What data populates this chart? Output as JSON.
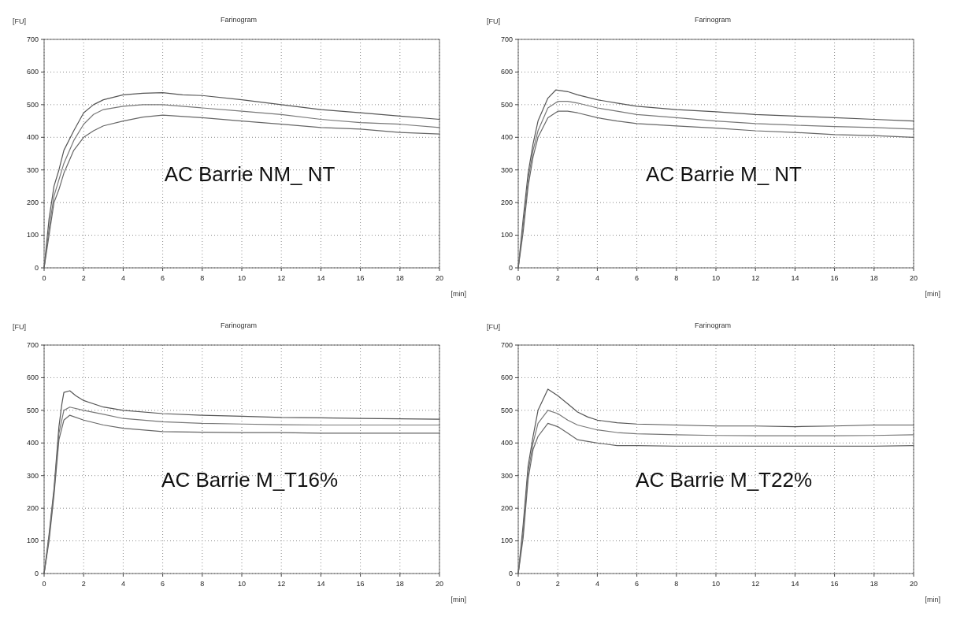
{
  "chart_data": [
    {
      "type": "line",
      "title": "Farinogram",
      "xlabel": "[min]",
      "ylabel": "[FU]",
      "annotations": [
        "AC Barrie NM_ NT"
      ],
      "xlim": [
        0,
        20
      ],
      "ylim": [
        0,
        700
      ],
      "xticks": [
        0,
        2,
        4,
        6,
        8,
        10,
        12,
        14,
        16,
        18,
        20
      ],
      "yticks": [
        0,
        100,
        200,
        300,
        400,
        500,
        600,
        700
      ],
      "grid": true,
      "line_style": "solid",
      "marker": "none",
      "series": [
        {
          "color": "#555555",
          "x": [
            0,
            0.25,
            0.5,
            0.75,
            1,
            1.5,
            2,
            2.5,
            3,
            4,
            5,
            6,
            7,
            8,
            10,
            12,
            14,
            16,
            18,
            20
          ],
          "values": [
            0,
            150,
            250,
            300,
            360,
            420,
            475,
            500,
            515,
            530,
            535,
            537,
            530,
            528,
            515,
            500,
            485,
            475,
            465,
            455
          ]
        },
        {
          "color": "#777777",
          "x": [
            0,
            0.25,
            0.5,
            0.75,
            1,
            1.5,
            2,
            2.5,
            3,
            4,
            5,
            6,
            8,
            10,
            12,
            14,
            16,
            18,
            20
          ],
          "values": [
            0,
            120,
            220,
            270,
            320,
            390,
            440,
            470,
            485,
            495,
            500,
            500,
            490,
            480,
            470,
            455,
            445,
            440,
            430
          ]
        },
        {
          "color": "#666666",
          "x": [
            0,
            0.25,
            0.5,
            0.75,
            1,
            1.5,
            2,
            2.5,
            3,
            4,
            5,
            6,
            8,
            10,
            12,
            14,
            16,
            18,
            20
          ],
          "values": [
            0,
            100,
            200,
            240,
            290,
            360,
            400,
            420,
            435,
            450,
            462,
            468,
            460,
            450,
            440,
            430,
            425,
            415,
            410
          ]
        }
      ]
    },
    {
      "type": "line",
      "title": "Farinogram",
      "xlabel": "[min]",
      "ylabel": "[FU]",
      "annotations": [
        "AC Barrie M_ NT"
      ],
      "xlim": [
        0,
        20
      ],
      "ylim": [
        0,
        700
      ],
      "xticks": [
        0,
        2,
        4,
        6,
        8,
        10,
        12,
        14,
        16,
        18,
        20
      ],
      "yticks": [
        0,
        100,
        200,
        300,
        400,
        500,
        600,
        700
      ],
      "grid": true,
      "line_style": "solid",
      "marker": "none",
      "series": [
        {
          "color": "#555555",
          "x": [
            0,
            0.25,
            0.5,
            0.75,
            1,
            1.5,
            1.9,
            2.5,
            3,
            4,
            5,
            6,
            8,
            10,
            12,
            14,
            16,
            18,
            20
          ],
          "values": [
            0,
            150,
            290,
            380,
            450,
            520,
            545,
            540,
            530,
            515,
            505,
            495,
            485,
            478,
            470,
            465,
            460,
            455,
            450
          ]
        },
        {
          "color": "#777777",
          "x": [
            0,
            0.25,
            0.5,
            0.75,
            1,
            1.5,
            2,
            2.5,
            3,
            4,
            5,
            6,
            8,
            10,
            12,
            14,
            16,
            18,
            20
          ],
          "values": [
            0,
            130,
            270,
            360,
            420,
            490,
            510,
            510,
            505,
            490,
            480,
            470,
            460,
            450,
            442,
            437,
            433,
            430,
            425
          ]
        },
        {
          "color": "#666666",
          "x": [
            0,
            0.25,
            0.5,
            0.75,
            1,
            1.5,
            2,
            2.5,
            3,
            4,
            5,
            6,
            8,
            10,
            12,
            14,
            16,
            18,
            20
          ],
          "values": [
            0,
            110,
            250,
            340,
            400,
            460,
            480,
            480,
            475,
            460,
            450,
            442,
            435,
            428,
            420,
            415,
            408,
            405,
            400
          ]
        }
      ]
    },
    {
      "type": "line",
      "title": "Farinogram",
      "xlabel": "[min]",
      "ylabel": "[FU]",
      "annotations": [
        "AC Barrie M_T16%"
      ],
      "xlim": [
        0,
        20
      ],
      "ylim": [
        0,
        700
      ],
      "xticks": [
        0,
        2,
        4,
        6,
        8,
        10,
        12,
        14,
        16,
        18,
        20
      ],
      "yticks": [
        0,
        100,
        200,
        300,
        400,
        500,
        600,
        700
      ],
      "grid": true,
      "line_style": "solid",
      "marker": "none",
      "series": [
        {
          "color": "#555555",
          "x": [
            0,
            0.25,
            0.5,
            0.75,
            0.9,
            1,
            1.3,
            1.6,
            2,
            3,
            4,
            6,
            8,
            10,
            12,
            14,
            16,
            18,
            20
          ],
          "values": [
            0,
            120,
            260,
            450,
            520,
            555,
            560,
            545,
            530,
            510,
            500,
            490,
            485,
            482,
            478,
            477,
            475,
            474,
            473
          ]
        },
        {
          "color": "#777777",
          "x": [
            0,
            0.25,
            0.5,
            0.75,
            1,
            1.3,
            2,
            3,
            4,
            6,
            8,
            10,
            12,
            14,
            16,
            18,
            20
          ],
          "values": [
            0,
            110,
            250,
            430,
            500,
            510,
            500,
            488,
            475,
            465,
            460,
            458,
            456,
            455,
            455,
            455,
            455
          ]
        },
        {
          "color": "#666666",
          "x": [
            0,
            0.25,
            0.5,
            0.75,
            1,
            1.3,
            2,
            3,
            4,
            6,
            8,
            10,
            12,
            14,
            16,
            18,
            20
          ],
          "values": [
            0,
            100,
            240,
            410,
            470,
            485,
            470,
            455,
            445,
            435,
            433,
            432,
            432,
            430,
            430,
            430,
            430
          ]
        }
      ]
    },
    {
      "type": "line",
      "title": "Farinogram",
      "xlabel": "[min]",
      "ylabel": "[FU]",
      "annotations": [
        "AC Barrie M_T22%"
      ],
      "xlim": [
        0,
        20
      ],
      "ylim": [
        0,
        700
      ],
      "xticks": [
        0,
        2,
        4,
        6,
        8,
        10,
        12,
        14,
        16,
        18,
        20
      ],
      "yticks": [
        0,
        100,
        200,
        300,
        400,
        500,
        600,
        700
      ],
      "grid": true,
      "line_style": "solid",
      "marker": "none",
      "series": [
        {
          "color": "#555555",
          "x": [
            0,
            0.25,
            0.5,
            0.75,
            1,
            1.5,
            2,
            2.5,
            3,
            3.5,
            4,
            5,
            6,
            8,
            10,
            12,
            14,
            16,
            18,
            20
          ],
          "values": [
            0,
            150,
            330,
            420,
            500,
            565,
            545,
            520,
            495,
            480,
            470,
            462,
            458,
            455,
            452,
            452,
            450,
            452,
            455,
            455
          ]
        },
        {
          "color": "#777777",
          "x": [
            0,
            0.25,
            0.5,
            0.75,
            1,
            1.5,
            2,
            2.5,
            3,
            4,
            5,
            6,
            8,
            10,
            12,
            14,
            16,
            18,
            20
          ],
          "values": [
            0,
            130,
            310,
            400,
            460,
            500,
            490,
            470,
            455,
            440,
            432,
            428,
            425,
            423,
            422,
            422,
            422,
            423,
            425
          ]
        },
        {
          "color": "#666666",
          "x": [
            0,
            0.25,
            0.5,
            0.75,
            1,
            1.5,
            2,
            2.5,
            3,
            4,
            5,
            6,
            8,
            10,
            12,
            14,
            16,
            18,
            20
          ],
          "values": [
            0,
            110,
            290,
            380,
            420,
            460,
            450,
            430,
            410,
            400,
            392,
            392,
            390,
            390,
            390,
            390,
            390,
            390,
            392
          ]
        }
      ]
    }
  ]
}
